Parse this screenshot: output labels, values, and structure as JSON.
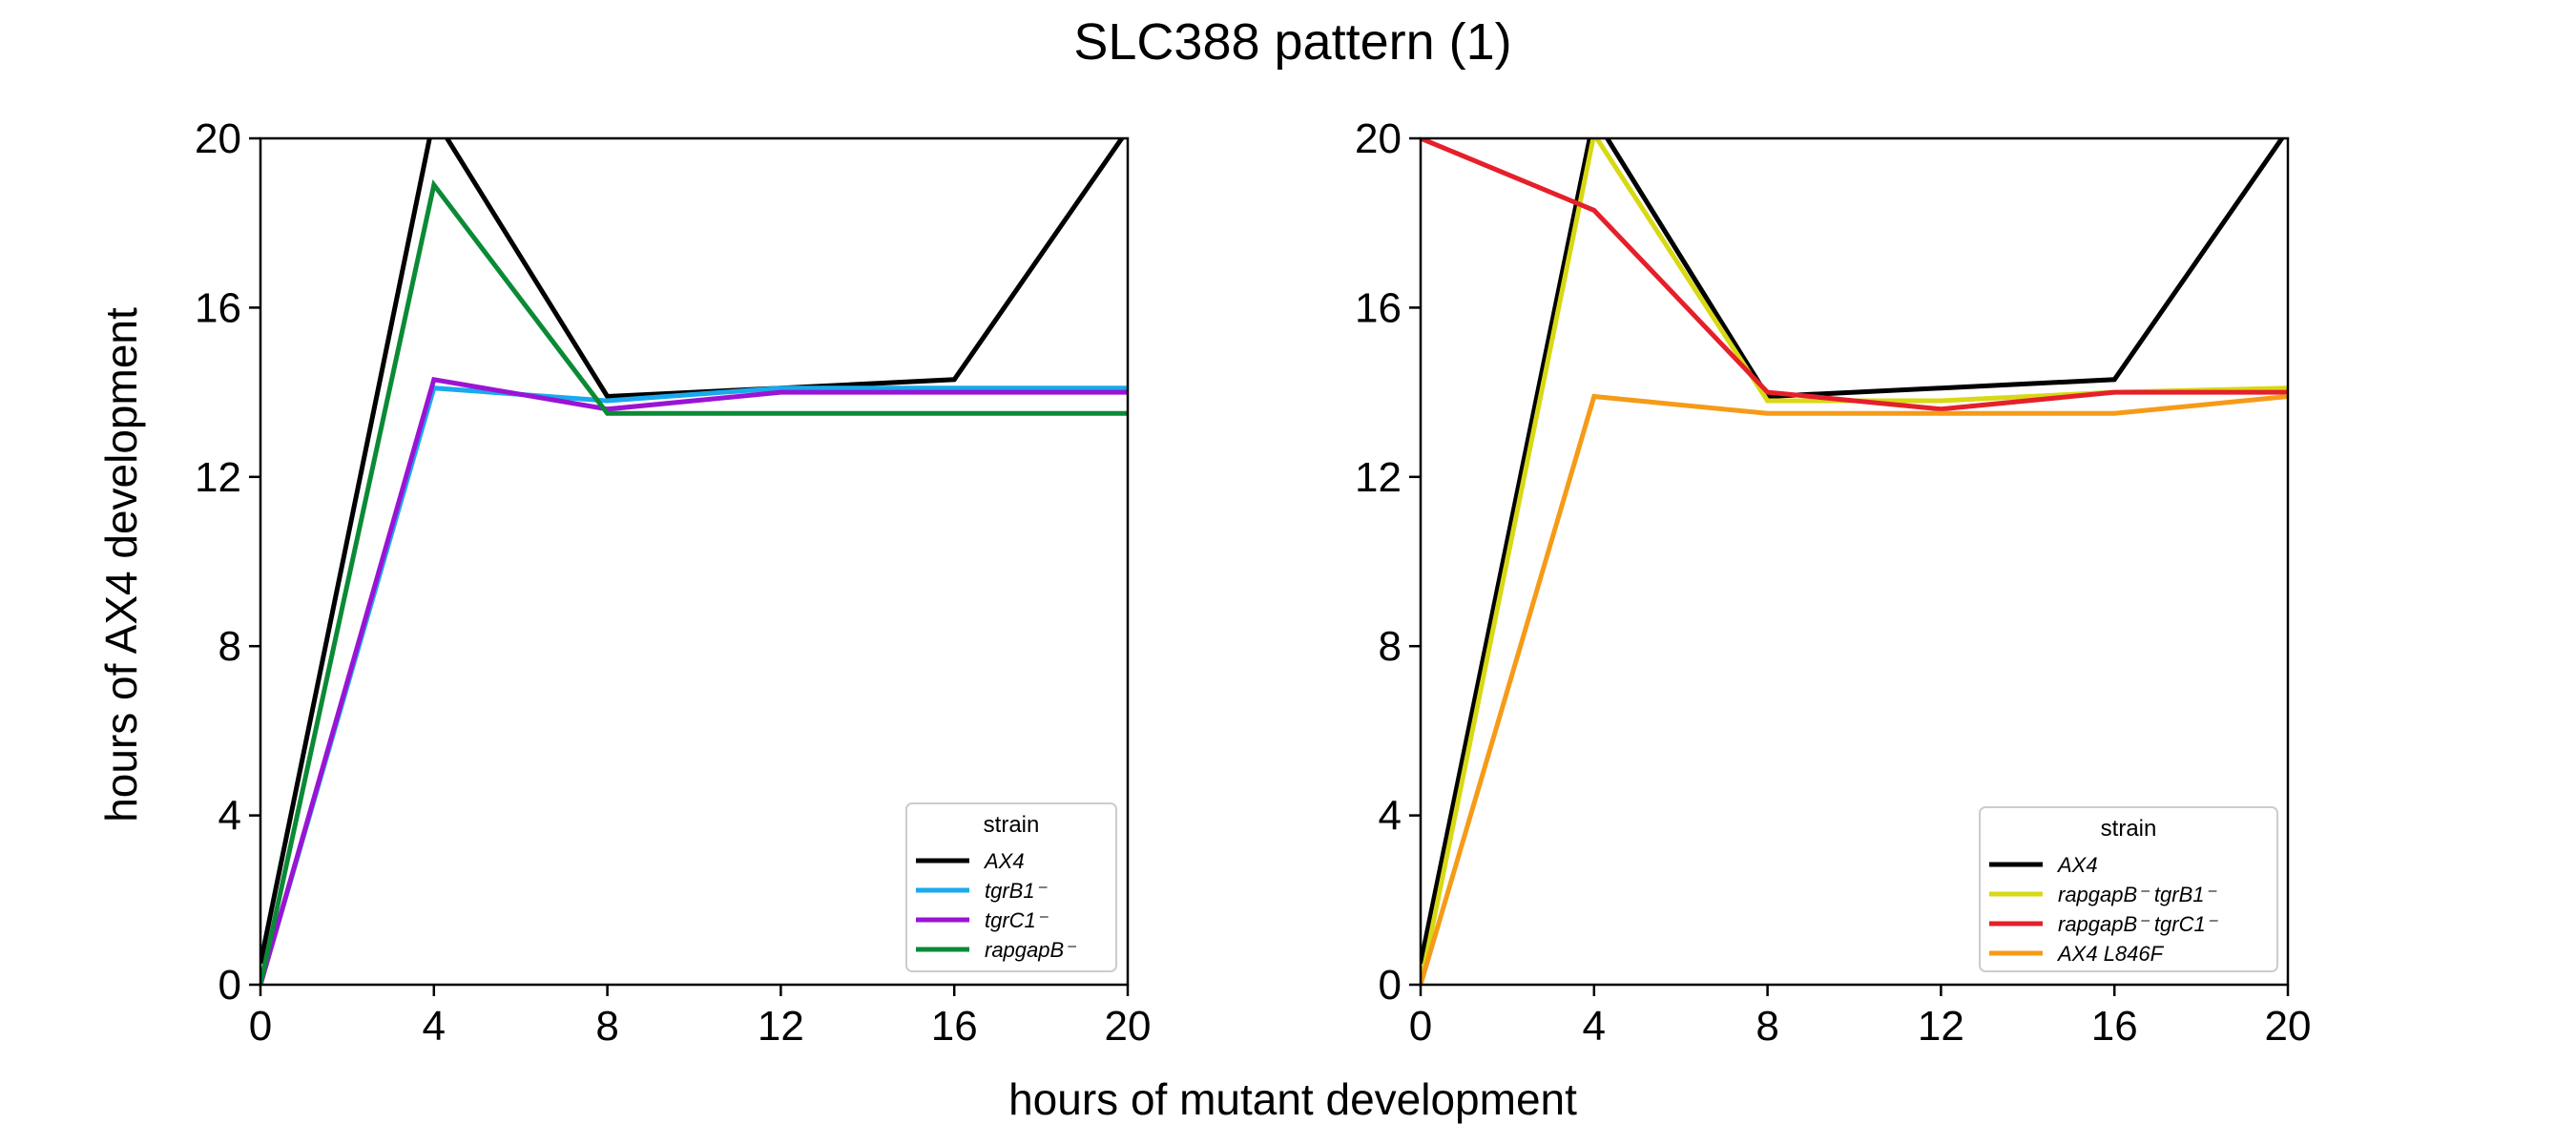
{
  "figure": {
    "title": "SLC388 pattern (1)",
    "xlabel": "hours of mutant development",
    "ylabel": "hours of AX4 development"
  },
  "chart_data": [
    {
      "type": "line",
      "x": [
        0,
        4,
        8,
        12,
        16,
        20
      ],
      "xlim": [
        0,
        20
      ],
      "ylim": [
        0,
        20
      ],
      "xticks": [
        "0",
        "4",
        "8",
        "12",
        "16",
        "20"
      ],
      "yticks": [
        "0",
        "4",
        "8",
        "12",
        "16",
        "20"
      ],
      "grid": false,
      "legend_title": "strain",
      "legend_position": "lower right",
      "series": [
        {
          "name": "AX4",
          "label": "AX4",
          "color": "#000000",
          "values": [
            0.5,
            20.5,
            13.9,
            14.1,
            14.3,
            20.2
          ]
        },
        {
          "name": "tgrB1-",
          "label": "tgrB1⁻",
          "color": "#1aa9ec",
          "values": [
            0,
            14.1,
            13.8,
            14.1,
            14.1,
            14.1
          ]
        },
        {
          "name": "tgrC1-",
          "label": "tgrC1⁻",
          "color": "#9b13d4",
          "values": [
            0,
            14.3,
            13.6,
            14.0,
            14.0,
            14.0
          ]
        },
        {
          "name": "rapgapB-",
          "label": "rapgapB⁻",
          "color": "#0b8a36",
          "values": [
            0,
            18.9,
            13.5,
            13.5,
            13.5,
            13.5
          ]
        }
      ]
    },
    {
      "type": "line",
      "x": [
        0,
        4,
        8,
        12,
        16,
        20
      ],
      "xlim": [
        0,
        20
      ],
      "ylim": [
        0,
        20
      ],
      "xticks": [
        "0",
        "4",
        "8",
        "12",
        "16",
        "20"
      ],
      "yticks": [
        "0",
        "4",
        "8",
        "12",
        "16",
        "20"
      ],
      "grid": false,
      "legend_title": "strain",
      "legend_position": "lower right",
      "series": [
        {
          "name": "AX4",
          "label": "AX4",
          "color": "#000000",
          "values": [
            0.5,
            20.5,
            13.9,
            14.1,
            14.3,
            20.2
          ]
        },
        {
          "name": "rapgapB- tgrB1-",
          "label": "rapgapB⁻ tgrB1⁻",
          "color": "#d8d815",
          "values": [
            0,
            20.1,
            13.8,
            13.8,
            14.0,
            14.1
          ]
        },
        {
          "name": "rapgapB- tgrC1-",
          "label": "rapgapB⁻ tgrC1⁻",
          "color": "#e5202a",
          "values": [
            20,
            18.3,
            14.0,
            13.6,
            14.0,
            14.0
          ]
        },
        {
          "name": "AX4 L846F",
          "label": "AX4 L846F",
          "color": "#f59b18",
          "values": [
            0,
            13.9,
            13.5,
            13.5,
            13.5,
            13.9
          ]
        }
      ]
    }
  ]
}
